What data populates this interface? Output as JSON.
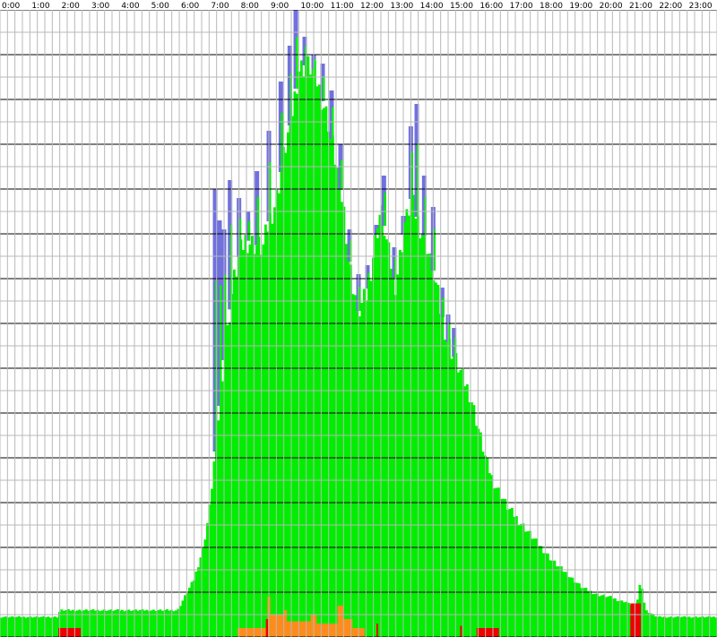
{
  "chart_data": {
    "type": "bar",
    "title": "",
    "xlabel": "",
    "ylabel": "",
    "x_tick_labels": [
      "0:00",
      "1:00",
      "2:00",
      "3:00",
      "4:00",
      "5:00",
      "6:00",
      "7:00",
      "8:00",
      "9:00",
      "10:00",
      "11:00",
      "12:00",
      "13:00",
      "14:00",
      "15:00",
      "16:00",
      "17:00",
      "18:00",
      "19:00",
      "20:00",
      "21:00",
      "22:00",
      "23:00"
    ],
    "xlim": [
      0,
      24
    ],
    "ylim": [
      0,
      14
    ],
    "grid": true,
    "legend": "none",
    "colors": {
      "green": "#00ee00",
      "blue": "#7070e0",
      "orange": "#ff8c1a",
      "red": "#ee0000",
      "minor_grid": "#b8b8b8",
      "major_grid": "#000000"
    },
    "green_profile": {
      "x": [
        0,
        1.0,
        1.95,
        2.0,
        2.5,
        2.95,
        3.0,
        5.0,
        5.95,
        6.1,
        6.5,
        6.8,
        7.0,
        7.25,
        7.5,
        7.8,
        8.0,
        8.2,
        8.5,
        8.8,
        9.0,
        9.25,
        9.5,
        9.75,
        10.0,
        10.25,
        10.5,
        10.75,
        11.0,
        11.25,
        11.5,
        11.75,
        12.0,
        12.25,
        12.5,
        12.75,
        13.0,
        13.25,
        13.5,
        13.75,
        14.0,
        14.25,
        14.5,
        14.75,
        15.0,
        15.25,
        15.5,
        15.75,
        16.0,
        16.25,
        16.5,
        17.0,
        17.5,
        18.0,
        18.5,
        19.0,
        19.5,
        20.0,
        20.4,
        20.6,
        20.8,
        20.95,
        21.0,
        21.3,
        21.45,
        21.6,
        22.0,
        24.0
      ],
      "y": [
        0.45,
        0.45,
        0.45,
        0.6,
        0.6,
        0.6,
        0.6,
        0.6,
        0.6,
        0.8,
        1.3,
        2.0,
        2.8,
        4.5,
        6.2,
        7.9,
        8.5,
        8.9,
        8.8,
        8.7,
        9.3,
        9.8,
        10.8,
        11.6,
        12.7,
        12.8,
        12.7,
        12.1,
        11.5,
        10.6,
        9.6,
        8.1,
        7.3,
        7.6,
        8.6,
        9.6,
        8.6,
        7.9,
        9.0,
        9.8,
        9.3,
        8.9,
        8.2,
        7.3,
        6.6,
        6.2,
        5.8,
        5.4,
        4.7,
        4.0,
        3.5,
        2.9,
        2.5,
        2.1,
        1.7,
        1.4,
        1.1,
        0.95,
        0.9,
        0.85,
        0.8,
        0.8,
        0.75,
        0.7,
        1.3,
        0.6,
        0.45,
        0.45
      ]
    },
    "blue_spikes": [
      {
        "x": 7.2,
        "y": 10.0
      },
      {
        "x": 7.35,
        "y": 9.3
      },
      {
        "x": 7.5,
        "y": 9.1
      },
      {
        "x": 7.7,
        "y": 10.2
      },
      {
        "x": 8.0,
        "y": 9.8
      },
      {
        "x": 8.3,
        "y": 9.5
      },
      {
        "x": 8.6,
        "y": 10.4
      },
      {
        "x": 9.0,
        "y": 11.3
      },
      {
        "x": 9.4,
        "y": 12.4
      },
      {
        "x": 9.7,
        "y": 13.2
      },
      {
        "x": 9.9,
        "y": 14.0
      },
      {
        "x": 10.2,
        "y": 13.4
      },
      {
        "x": 10.5,
        "y": 13.0
      },
      {
        "x": 10.8,
        "y": 12.8
      },
      {
        "x": 11.1,
        "y": 12.2
      },
      {
        "x": 11.4,
        "y": 11.0
      },
      {
        "x": 11.7,
        "y": 9.1
      },
      {
        "x": 12.0,
        "y": 8.1
      },
      {
        "x": 12.3,
        "y": 8.3
      },
      {
        "x": 12.6,
        "y": 9.2
      },
      {
        "x": 12.85,
        "y": 10.3
      },
      {
        "x": 13.2,
        "y": 8.7
      },
      {
        "x": 13.5,
        "y": 9.4
      },
      {
        "x": 13.75,
        "y": 11.4
      },
      {
        "x": 13.95,
        "y": 11.9
      },
      {
        "x": 14.2,
        "y": 10.3
      },
      {
        "x": 14.5,
        "y": 9.6
      },
      {
        "x": 14.8,
        "y": 7.8
      },
      {
        "x": 15.0,
        "y": 7.2
      },
      {
        "x": 15.2,
        "y": 6.9
      }
    ],
    "orange_bars": [
      {
        "x0": 7.95,
        "x1": 8.9,
        "y": 0.2
      },
      {
        "x0": 8.95,
        "y": 0.9,
        "x1": 9.05
      },
      {
        "x0": 9.05,
        "x1": 9.5,
        "y": 0.5
      },
      {
        "x0": 9.5,
        "x1": 9.6,
        "y": 0.6
      },
      {
        "x0": 9.6,
        "x1": 10.4,
        "y": 0.35
      },
      {
        "x0": 10.4,
        "x1": 10.6,
        "y": 0.5
      },
      {
        "x0": 10.6,
        "x1": 11.3,
        "y": 0.3
      },
      {
        "x0": 11.3,
        "x1": 11.5,
        "y": 0.7
      },
      {
        "x0": 11.5,
        "x1": 11.8,
        "y": 0.4
      },
      {
        "x0": 11.8,
        "x1": 12.2,
        "y": 0.2
      }
    ],
    "red_bars": [
      {
        "x0": 1.95,
        "x1": 2.7,
        "y": 0.2
      },
      {
        "x0": 8.9,
        "x1": 8.97,
        "y": 0.4
      },
      {
        "x0": 12.6,
        "x1": 12.65,
        "y": 0.3
      },
      {
        "x0": 15.4,
        "x1": 15.45,
        "y": 0.25
      },
      {
        "x0": 15.95,
        "x1": 16.7,
        "y": 0.2
      },
      {
        "x0": 21.1,
        "x1": 21.45,
        "y": 0.75
      }
    ],
    "minor_grid_rows": 28,
    "major_grid_every": 2
  }
}
